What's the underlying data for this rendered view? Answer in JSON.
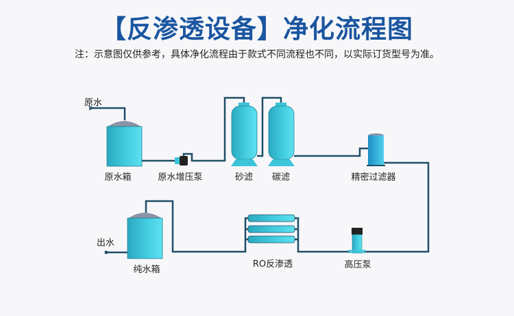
{
  "title": "【反渗透设备】净化流程图",
  "subtitle": "注：示意图仅供参考，具体净化流程由于款式不同流程也不同，以实际订货型号为准。",
  "labels": {
    "inlet": "原水",
    "raw_tank": "原水箱",
    "booster_pump": "原水增压泵",
    "sand_filter": "砂滤",
    "carbon_filter": "碳滤",
    "precision_filter": "精密过滤器",
    "high_pressure_pump": "高压泵",
    "ro": "RO反渗透",
    "pure_tank": "纯水箱",
    "outlet": "出水"
  },
  "colors": {
    "title": "#1a56a0",
    "pipe": "#1f4e66",
    "tank": "#3cc4da",
    "dome": "#8a93a8"
  }
}
